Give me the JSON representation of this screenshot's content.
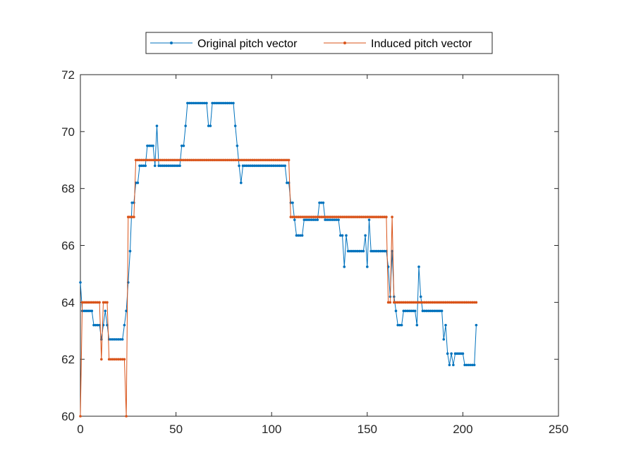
{
  "chart_data": {
    "type": "line",
    "title": "",
    "xlabel": "",
    "ylabel": "",
    "xlim": [
      0,
      250
    ],
    "ylim": [
      60,
      72
    ],
    "xticks": [
      "0",
      "50",
      "100",
      "150",
      "200",
      "250"
    ],
    "yticks": [
      "60",
      "62",
      "64",
      "66",
      "68",
      "70",
      "72"
    ],
    "grid": false,
    "legend_placement": "top-center-outside",
    "x_start": 0,
    "series": [
      {
        "name": "Original pitch vector",
        "color": "#0072BD",
        "runs": [
          [
            64.7,
            1
          ],
          [
            63.7,
            6
          ],
          [
            63.2,
            4
          ],
          [
            62.7,
            1
          ],
          [
            63.2,
            1
          ],
          [
            63.7,
            1
          ],
          [
            63.2,
            1
          ],
          [
            62.7,
            8
          ],
          [
            63.2,
            1
          ],
          [
            63.7,
            1
          ],
          [
            64.7,
            1
          ],
          [
            65.8,
            1
          ],
          [
            67.5,
            2
          ],
          [
            68.2,
            2
          ],
          [
            68.8,
            4
          ],
          [
            69.5,
            4
          ],
          [
            68.8,
            1
          ],
          [
            70.2,
            1
          ],
          [
            68.8,
            12
          ],
          [
            69.5,
            2
          ],
          [
            70.2,
            1
          ],
          [
            71.0,
            11
          ],
          [
            70.2,
            2
          ],
          [
            71.0,
            12
          ],
          [
            70.2,
            1
          ],
          [
            69.5,
            1
          ],
          [
            68.8,
            1
          ],
          [
            68.2,
            1
          ],
          [
            68.8,
            23
          ],
          [
            68.2,
            2
          ],
          [
            67.5,
            2
          ],
          [
            66.9,
            1
          ],
          [
            66.35,
            4
          ],
          [
            66.9,
            8
          ],
          [
            67.5,
            3
          ],
          [
            66.9,
            8
          ],
          [
            66.35,
            2
          ],
          [
            65.25,
            1
          ],
          [
            66.35,
            1
          ],
          [
            65.8,
            9
          ],
          [
            66.35,
            1
          ],
          [
            65.25,
            1
          ],
          [
            66.9,
            1
          ],
          [
            65.8,
            9
          ],
          [
            65.25,
            1
          ],
          [
            64.2,
            1
          ],
          [
            65.8,
            1
          ],
          [
            64.2,
            1
          ],
          [
            63.7,
            1
          ],
          [
            63.2,
            3
          ],
          [
            63.7,
            7
          ],
          [
            63.2,
            1
          ],
          [
            65.25,
            1
          ],
          [
            64.2,
            1
          ],
          [
            63.7,
            11
          ],
          [
            62.7,
            1
          ],
          [
            63.2,
            1
          ],
          [
            62.2,
            1
          ],
          [
            61.8,
            1
          ],
          [
            62.2,
            1
          ],
          [
            61.8,
            1
          ],
          [
            62.2,
            5
          ],
          [
            61.8,
            6
          ],
          [
            63.2,
            1
          ]
        ]
      },
      {
        "name": "Induced pitch vector",
        "color": "#D95319",
        "runs": [
          [
            60,
            1
          ],
          [
            64,
            10
          ],
          [
            62,
            1
          ],
          [
            64,
            3
          ],
          [
            62,
            9
          ],
          [
            60,
            1
          ],
          [
            67,
            4
          ],
          [
            69,
            81
          ],
          [
            67,
            51
          ],
          [
            64,
            2
          ],
          [
            67,
            1
          ],
          [
            64,
            44
          ]
        ]
      }
    ]
  }
}
